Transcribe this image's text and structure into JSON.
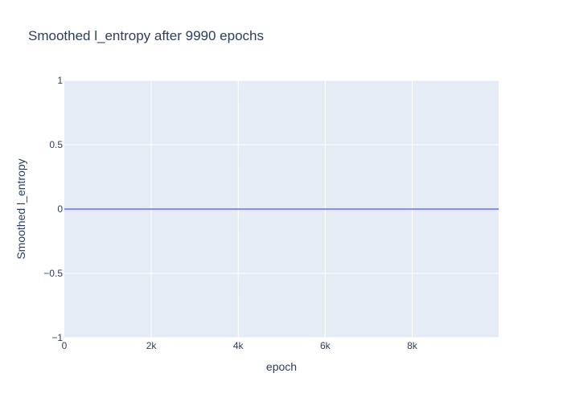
{
  "chart_data": {
    "type": "line",
    "title": "Smoothed l_entropy after 9990 epochs",
    "xlabel": "epoch",
    "ylabel": "Smoothed l_entropy",
    "xlim": [
      0,
      9990
    ],
    "ylim": [
      -1,
      1
    ],
    "x_ticks": [
      0,
      2000,
      4000,
      6000,
      8000
    ],
    "x_tick_labels": [
      "0",
      "2k",
      "4k",
      "6k",
      "8k"
    ],
    "y_ticks": [
      1,
      0.5,
      0,
      -0.5,
      -1
    ],
    "y_tick_labels": [
      "1",
      "0.5",
      "0",
      "−0.5",
      "−1"
    ],
    "grid": true,
    "series": [
      {
        "x": [
          0,
          9990
        ],
        "y": [
          0,
          0
        ],
        "color": "#636efa"
      }
    ]
  },
  "colors": {
    "plot_background": "#e5ecf6",
    "grid": "#ffffff",
    "text": "#2a3f5f",
    "line": "#636efa"
  }
}
